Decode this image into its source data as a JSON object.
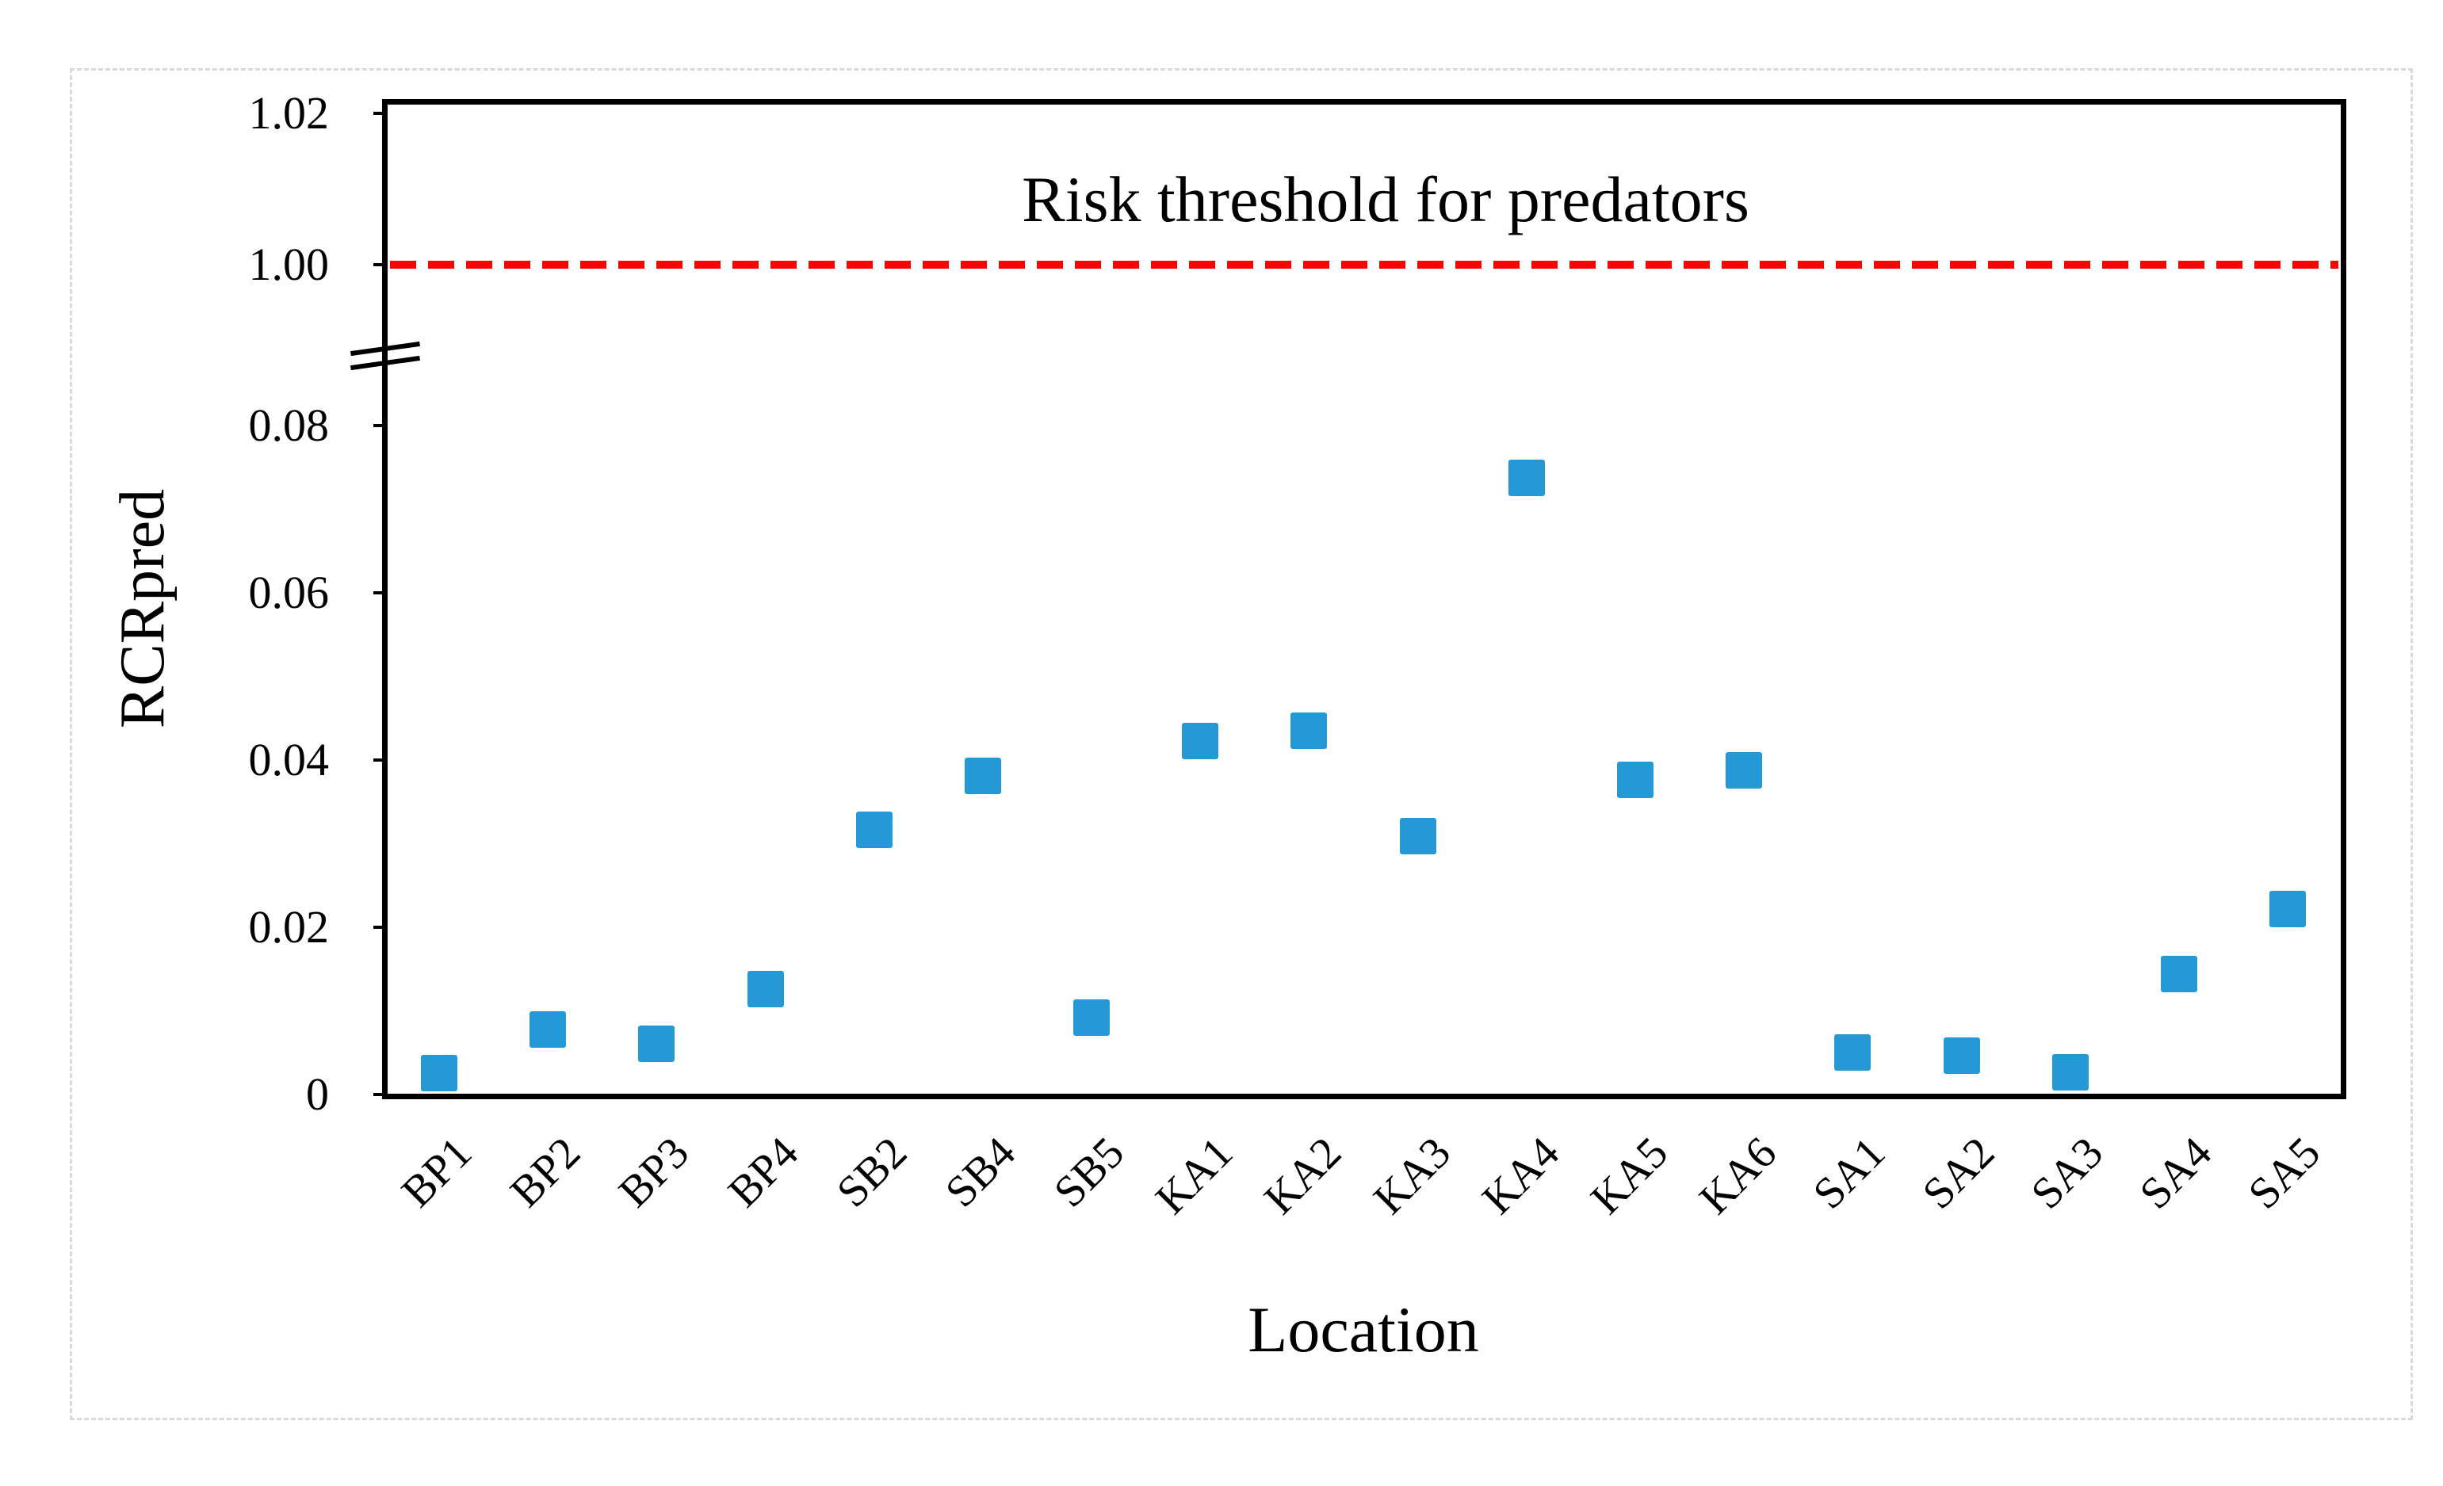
{
  "chart_data": {
    "type": "scatter",
    "title": "",
    "xlabel": "Location",
    "ylabel": "RCRpred",
    "categories": [
      "BP1",
      "BP2",
      "BP3",
      "BP4",
      "SB2",
      "SB4",
      "SB5",
      "KA1",
      "KA2",
      "KA3",
      "KA4",
      "KA5",
      "KA6",
      "SA1",
      "SA2",
      "SA3",
      "SA4",
      "SA5"
    ],
    "series": [
      {
        "name": "RCRpred",
        "marker": "square",
        "color": "#2499D6",
        "values": [
          0.0026,
          0.0078,
          0.0061,
          0.0126,
          0.0317,
          0.0381,
          0.0092,
          0.0423,
          0.0435,
          0.0309,
          0.0737,
          0.0376,
          0.0388,
          0.005,
          0.0046,
          0.0027,
          0.0144,
          0.0222
        ]
      }
    ],
    "y_axis": {
      "tick_labels": [
        "1.02",
        "1.00",
        "0.08",
        "0.06",
        "0.04",
        "0.02",
        "0"
      ],
      "axis_break": true,
      "lower_range": [
        0,
        0.09
      ],
      "upper_range": [
        1.0,
        1.02
      ],
      "grid": false
    },
    "threshold_line": {
      "value": 1.0,
      "label": "Risk threshold for predators",
      "color": "#FF0000",
      "style": "dashed"
    },
    "legend_position": "none"
  },
  "colors": {
    "marker": "#2499D6",
    "threshold": "#FF0000",
    "axis": "#000000",
    "figure_border": "#D9D9D9",
    "background": "#FFFFFF"
  }
}
